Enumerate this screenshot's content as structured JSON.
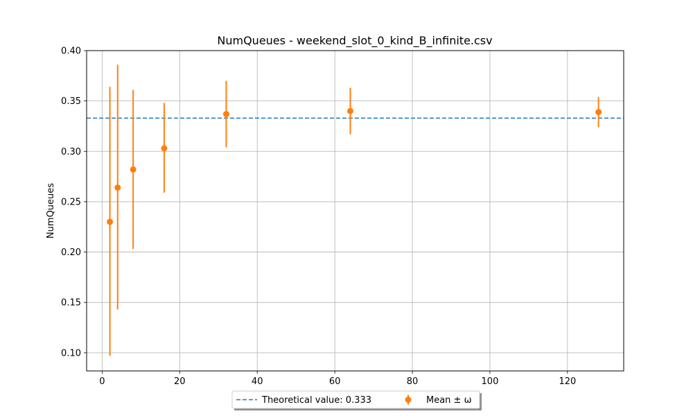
{
  "chart_data": {
    "type": "scatter",
    "title": "NumQueues - weekend_slot_0_kind_B_infinite.csv",
    "xlabel": "",
    "ylabel": "NumQueues",
    "xlim": [
      -4,
      134.5
    ],
    "ylim": [
      0.082,
      0.4
    ],
    "x_ticks": [
      0,
      20,
      40,
      60,
      80,
      100,
      120
    ],
    "y_ticks": [
      0.1,
      0.15,
      0.2,
      0.25,
      0.3,
      0.35,
      0.4
    ],
    "x_tick_labels": [
      "0",
      "20",
      "40",
      "60",
      "80",
      "100",
      "120"
    ],
    "y_tick_labels": [
      "0.10",
      "0.15",
      "0.20",
      "0.25",
      "0.30",
      "0.35",
      "0.40"
    ],
    "grid": true,
    "theoretical_value": 0.333,
    "series": [
      {
        "name": "Mean ± ω",
        "color": "#ff7f0e",
        "x": [
          2,
          4,
          8,
          16,
          32,
          64,
          128
        ],
        "y": [
          0.23,
          0.264,
          0.282,
          0.303,
          0.337,
          0.34,
          0.339
        ],
        "yerr_low": [
          0.097,
          0.143,
          0.203,
          0.259,
          0.304,
          0.317,
          0.324
        ],
        "yerr_high": [
          0.364,
          0.386,
          0.361,
          0.348,
          0.37,
          0.363,
          0.354
        ]
      }
    ],
    "legend": {
      "placement": "bottom-center",
      "entries": [
        {
          "label": "Theoretical value: 0.333",
          "style": "dashed-line",
          "color": "#1f77b4"
        },
        {
          "label": "Mean ± ω",
          "style": "errorbar-marker",
          "color": "#ff7f0e"
        }
      ]
    }
  }
}
